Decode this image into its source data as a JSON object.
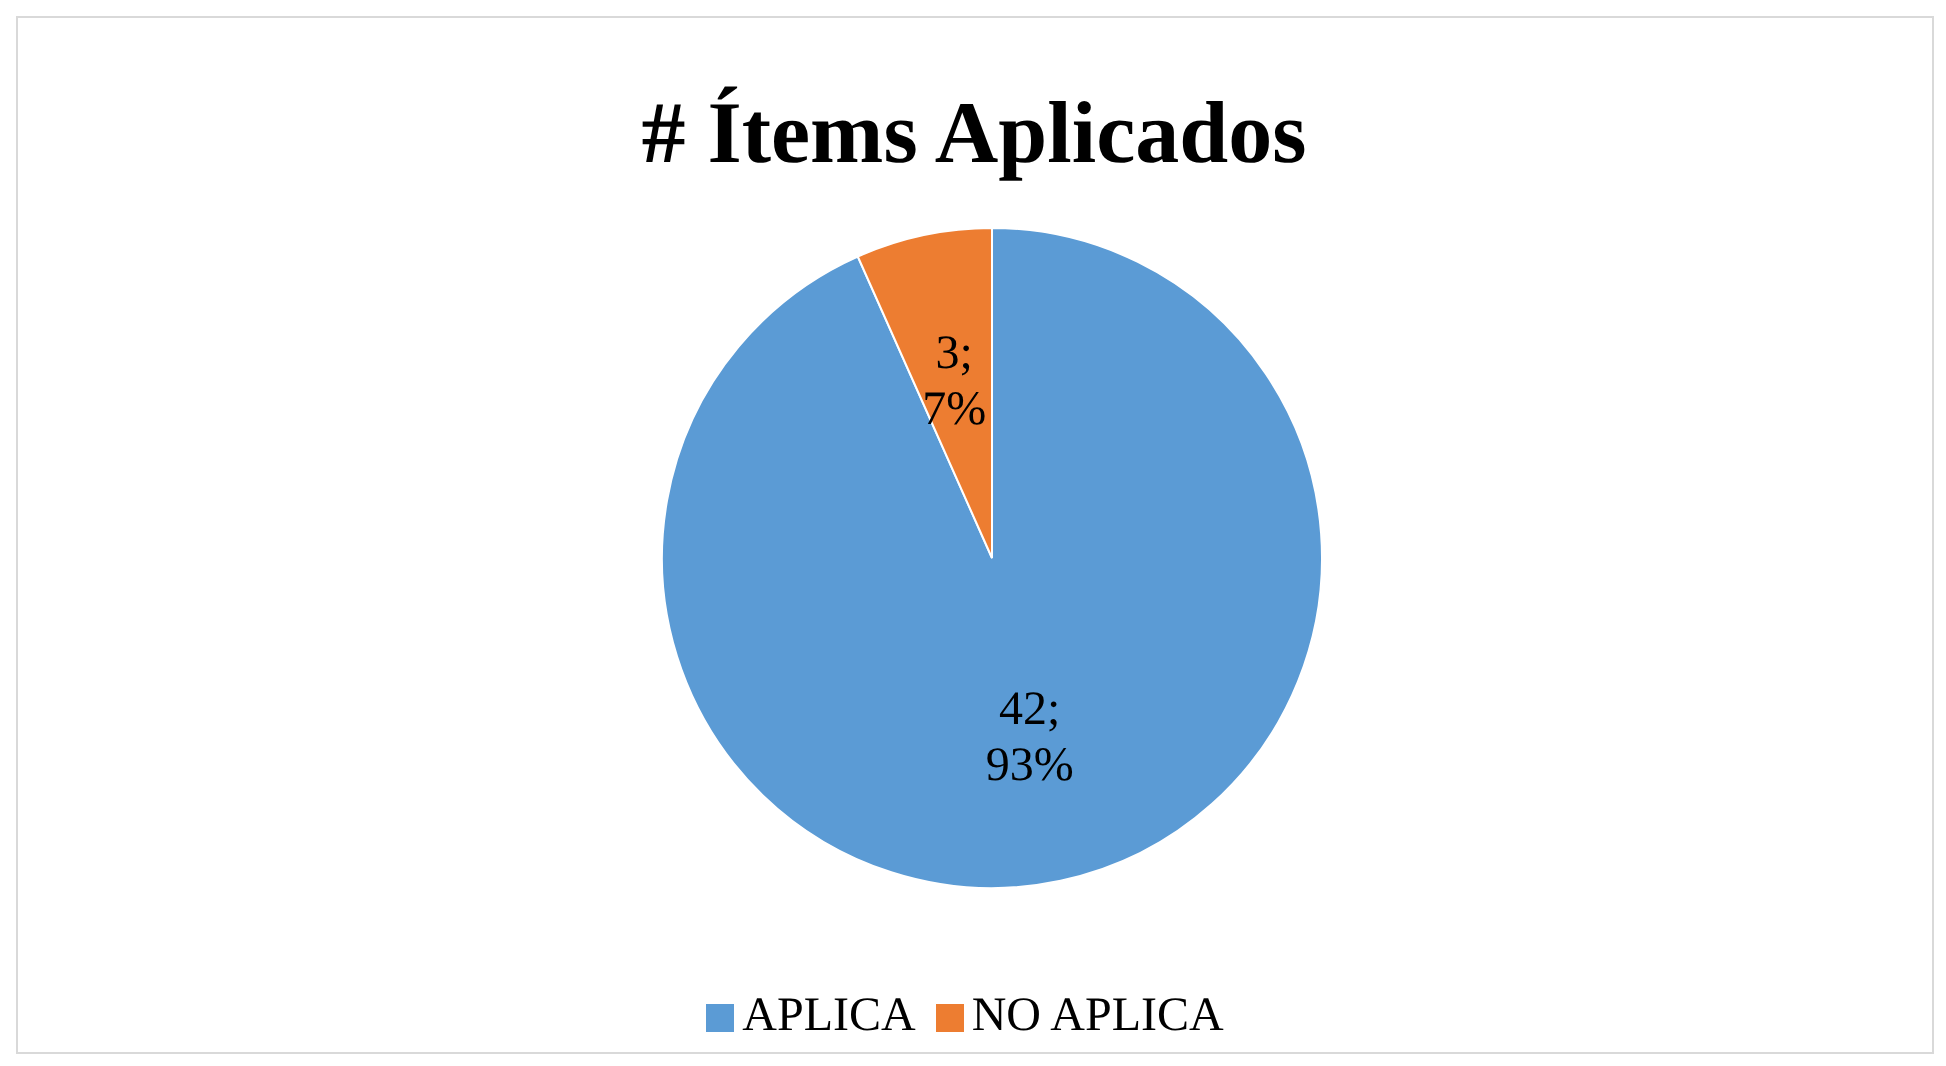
{
  "chart_data": {
    "type": "pie",
    "title": "# Ítems Aplicados",
    "categories": [
      "APLICA",
      "NO APLICA"
    ],
    "values": [
      42,
      3
    ],
    "colors": [
      "#5b9bd5",
      "#ed7d31"
    ],
    "value_labels": [
      "42; 93%",
      "3; 7%"
    ],
    "legend": "bottom"
  }
}
